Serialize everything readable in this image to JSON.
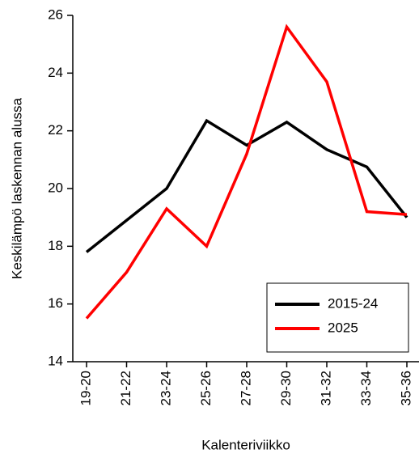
{
  "chart_data": {
    "type": "line",
    "x_label": "Kalenteriviikko",
    "y_label": "Keskilämpö laskennan alussa",
    "categories": [
      "19-20",
      "21-22",
      "23-24",
      "25-26",
      "27-28",
      "29-30",
      "31-32",
      "33-34",
      "35-36"
    ],
    "series": [
      {
        "name": "2015-24",
        "color": "#000000",
        "values": [
          17.8,
          18.9,
          20.0,
          22.35,
          21.5,
          22.3,
          21.35,
          20.75,
          19.0
        ]
      },
      {
        "name": "2025",
        "color": "#ff0000",
        "values": [
          15.5,
          17.1,
          19.3,
          18.0,
          21.2,
          25.6,
          23.7,
          19.2,
          19.1
        ]
      }
    ],
    "ylim": [
      14,
      26
    ],
    "yticks": [
      14,
      16,
      18,
      20,
      22,
      24,
      26
    ],
    "grid": false,
    "legend": "lower right"
  }
}
